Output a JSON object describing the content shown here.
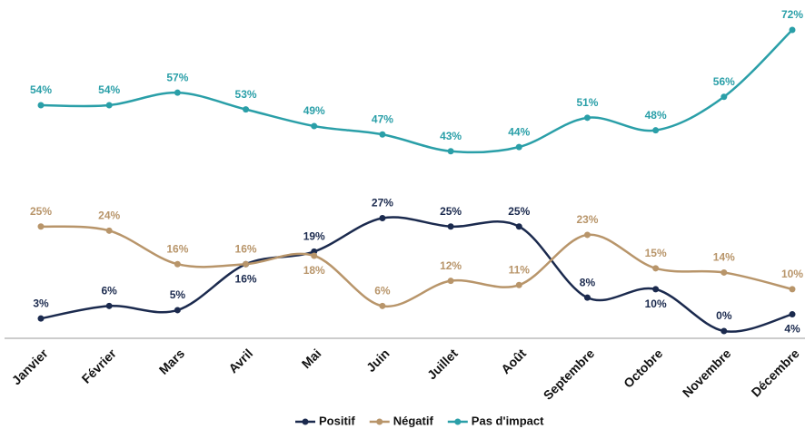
{
  "chart_data": {
    "type": "line",
    "categories": [
      "Janvier",
      "Février",
      "Mars",
      "Avril",
      "Mai",
      "Juin",
      "Juillet",
      "Août",
      "Septembre",
      "Octobre",
      "Novembre",
      "Décembre"
    ],
    "series": [
      {
        "name": "Positif",
        "color": "#1b2a4e",
        "values": [
          3,
          6,
          5,
          16,
          19,
          27,
          25,
          25,
          8,
          10,
          0,
          4
        ],
        "value_labels": [
          "3%",
          "6%",
          "5%",
          "16%",
          "19%",
          "27%",
          "25%",
          "25%",
          "8%",
          "10%",
          "0%",
          "4%"
        ]
      },
      {
        "name": "Négatif",
        "color": "#b8956a",
        "values": [
          25,
          24,
          16,
          16,
          18,
          6,
          12,
          11,
          23,
          15,
          14,
          10
        ],
        "value_labels": [
          "25%",
          "24%",
          "16%",
          "16%",
          "18%",
          "6%",
          "12%",
          "11%",
          "23%",
          "15%",
          "14%",
          "10%"
        ]
      },
      {
        "name": "Pas d'impact",
        "color": "#2a9fa8",
        "values": [
          54,
          54,
          57,
          53,
          49,
          47,
          43,
          44,
          51,
          48,
          56,
          72
        ],
        "value_labels": [
          "54%",
          "54%",
          "57%",
          "53%",
          "49%",
          "47%",
          "43%",
          "44%",
          "51%",
          "48%",
          "56%",
          "72%"
        ]
      }
    ],
    "legend": "bottom"
  }
}
